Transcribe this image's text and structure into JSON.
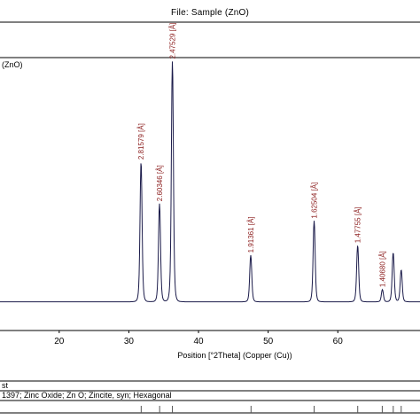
{
  "file_title": "File: Sample (ZnO)",
  "chart_data": {
    "type": "line",
    "sample_label": "(ZnO)",
    "xlabel": "Position [°2Theta] (Copper (Cu))",
    "x_ticks": [
      20,
      30,
      40,
      50,
      60
    ],
    "xlim": [
      11.5,
      71.8
    ],
    "ylim": [
      0,
      1.0
    ],
    "series": [
      {
        "peaks": [
          {
            "x": 31.75,
            "y": 0.57,
            "label": "2.81579 [Å]"
          },
          {
            "x": 34.4,
            "y": 0.4,
            "label": "2.60346 [Å]"
          },
          {
            "x": 36.25,
            "y": 0.98,
            "label": "2.47529 [Å]"
          },
          {
            "x": 47.5,
            "y": 0.19,
            "label": "1.91361 [Å]"
          },
          {
            "x": 56.6,
            "y": 0.33,
            "label": "1.62504 [Å]"
          },
          {
            "x": 62.85,
            "y": 0.23,
            "label": "1.47755 [Å]"
          },
          {
            "x": 66.4,
            "y": 0.05,
            "label": "1.40680 [Å]"
          },
          {
            "x": 67.95,
            "y": 0.2,
            "label": ""
          },
          {
            "x": 69.1,
            "y": 0.13,
            "label": ""
          }
        ]
      }
    ],
    "reference_header": "st",
    "reference": {
      "text": "1397; Zinc Oxide; Zn O; Zincite, syn; Hexagonal",
      "lines": [
        31.77,
        34.42,
        36.25,
        47.54,
        56.6,
        62.86,
        66.38,
        67.96,
        69.1
      ]
    }
  }
}
